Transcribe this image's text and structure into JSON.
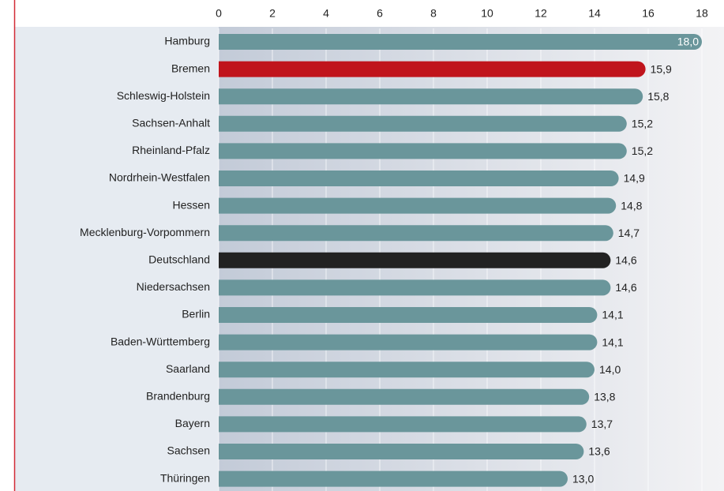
{
  "chart_data": {
    "type": "barh",
    "categories": [
      "Hamburg",
      "Bremen",
      "Schleswig-Holstein",
      "Sachsen-Anhalt",
      "Rheinland-Pfalz",
      "Nordrhein-Westfalen",
      "Hessen",
      "Mecklenburg-Vorpommern",
      "Deutschland",
      "Niedersachsen",
      "Berlin",
      "Baden-Württemberg",
      "Saarland",
      "Brandenburg",
      "Bayern",
      "Sachsen",
      "Thüringen"
    ],
    "values": [
      18.0,
      15.9,
      15.8,
      15.2,
      15.2,
      14.9,
      14.8,
      14.7,
      14.6,
      14.6,
      14.1,
      14.1,
      14.0,
      13.8,
      13.7,
      13.6,
      13.0
    ],
    "value_labels": [
      "18,0",
      "15,9",
      "15,8",
      "15,2",
      "15,2",
      "14,9",
      "14,8",
      "14,7",
      "14,6",
      "14,6",
      "14,1",
      "14,1",
      "14,0",
      "13,8",
      "13,7",
      "13,6",
      "13,0"
    ],
    "colors": [
      "#6a969b",
      "#c0141c",
      "#6a969b",
      "#6a969b",
      "#6a969b",
      "#6a969b",
      "#6a969b",
      "#6a969b",
      "#222222",
      "#6a969b",
      "#6a969b",
      "#6a969b",
      "#6a969b",
      "#6a969b",
      "#6a969b",
      "#6a969b",
      "#6a969b"
    ],
    "xlim": [
      0,
      18
    ],
    "xticks": [
      0,
      2,
      4,
      6,
      8,
      10,
      12,
      14,
      16,
      18
    ],
    "grid": true
  }
}
